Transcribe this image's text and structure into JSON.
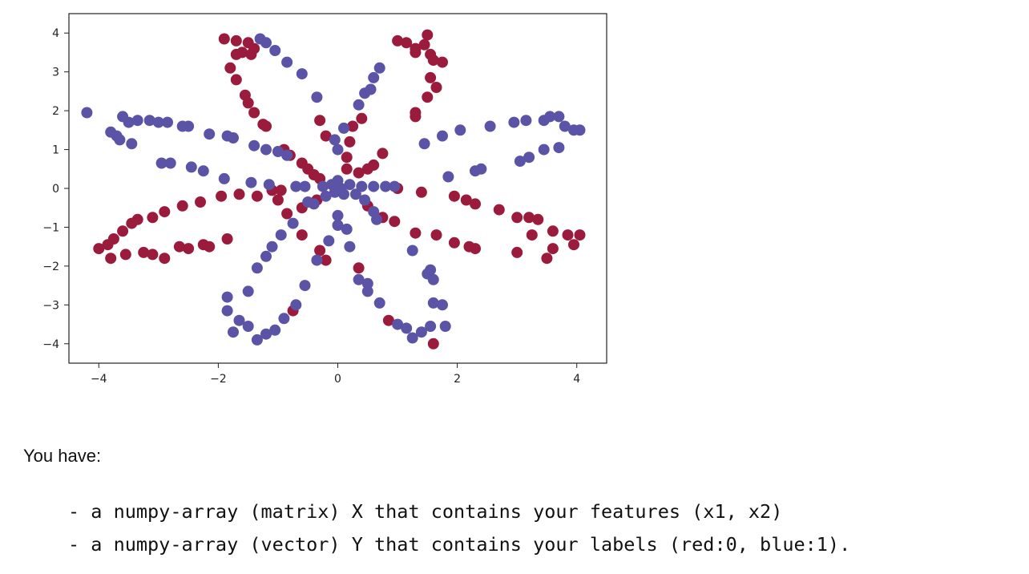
{
  "chart_data": {
    "type": "scatter",
    "title": "",
    "xlabel": "",
    "ylabel": "",
    "xlim": [
      -4.5,
      4.5
    ],
    "ylim": [
      -4.5,
      4.5
    ],
    "xticks": [
      -4,
      -2,
      0,
      2,
      4
    ],
    "yticks": [
      4,
      3,
      2,
      1,
      0,
      -1,
      -2,
      -3,
      -4
    ],
    "xtick_labels": [
      "−4",
      "−2",
      "0",
      "2",
      "4"
    ],
    "ytick_labels": [
      "4",
      "3",
      "2",
      "1",
      "0",
      "−1",
      "−2",
      "−3",
      "−4"
    ],
    "grid": false,
    "series": [
      {
        "label": "0",
        "color": "#9b1b3d",
        "points": [
          [
            -1.9,
            3.85
          ],
          [
            -1.7,
            3.45
          ],
          [
            -1.6,
            3.5
          ],
          [
            -1.45,
            3.45
          ],
          [
            -1.5,
            3.75
          ],
          [
            -1.8,
            3.1
          ],
          [
            -1.7,
            2.8
          ],
          [
            -1.55,
            2.4
          ],
          [
            -1.5,
            2.2
          ],
          [
            -1.4,
            1.95
          ],
          [
            -1.25,
            1.65
          ],
          [
            -1.2,
            1.6
          ],
          [
            -0.9,
            1.0
          ],
          [
            -0.8,
            0.85
          ],
          [
            -0.6,
            0.65
          ],
          [
            -0.5,
            0.5
          ],
          [
            -0.4,
            0.35
          ],
          [
            -0.3,
            0.25
          ],
          [
            -1.7,
            3.8
          ],
          [
            -1.4,
            3.6
          ],
          [
            1.0,
            3.8
          ],
          [
            1.15,
            3.75
          ],
          [
            1.3,
            3.6
          ],
          [
            1.45,
            3.7
          ],
          [
            1.5,
            3.95
          ],
          [
            1.6,
            3.3
          ],
          [
            1.75,
            3.25
          ],
          [
            1.55,
            2.85
          ],
          [
            1.65,
            2.6
          ],
          [
            1.5,
            2.35
          ],
          [
            1.3,
            1.95
          ],
          [
            1.3,
            1.85
          ],
          [
            0.4,
            1.8
          ],
          [
            0.25,
            1.6
          ],
          [
            0.2,
            1.2
          ],
          [
            0.15,
            0.8
          ],
          [
            0.15,
            0.5
          ],
          [
            1.3,
            3.5
          ],
          [
            1.55,
            3.45
          ],
          [
            0.35,
            0.4
          ],
          [
            0.5,
            0.5
          ],
          [
            0.6,
            0.6
          ],
          [
            0.75,
            0.9
          ],
          [
            1.0,
            0.0
          ],
          [
            1.4,
            -0.1
          ],
          [
            1.95,
            -0.2
          ],
          [
            2.15,
            -0.3
          ],
          [
            2.3,
            -0.4
          ],
          [
            2.7,
            -0.55
          ],
          [
            3.0,
            -0.75
          ],
          [
            3.2,
            -0.75
          ],
          [
            3.35,
            -0.8
          ],
          [
            3.0,
            -1.65
          ],
          [
            3.25,
            -1.2
          ],
          [
            3.6,
            -1.1
          ],
          [
            3.85,
            -1.2
          ],
          [
            4.05,
            -1.2
          ],
          [
            3.6,
            -1.55
          ],
          [
            3.5,
            -1.8
          ],
          [
            3.95,
            -1.45
          ],
          [
            0.5,
            -0.45
          ],
          [
            0.75,
            -0.75
          ],
          [
            0.95,
            -0.85
          ],
          [
            1.3,
            -1.15
          ],
          [
            1.65,
            -1.2
          ],
          [
            1.95,
            -1.4
          ],
          [
            2.2,
            -1.5
          ],
          [
            2.3,
            -1.55
          ],
          [
            -0.35,
            -0.3
          ],
          [
            -0.6,
            -0.5
          ],
          [
            -1.0,
            -0.3
          ],
          [
            -1.35,
            -0.2
          ],
          [
            -1.65,
            -0.15
          ],
          [
            -1.95,
            -0.2
          ],
          [
            -2.3,
            -0.35
          ],
          [
            -2.6,
            -0.45
          ],
          [
            -2.9,
            -0.6
          ],
          [
            -3.1,
            -0.75
          ],
          [
            -3.35,
            -0.8
          ],
          [
            -3.45,
            -0.9
          ],
          [
            -3.75,
            -1.3
          ],
          [
            -3.85,
            -1.45
          ],
          [
            -4.0,
            -1.55
          ],
          [
            -3.8,
            -1.8
          ],
          [
            -3.55,
            -1.7
          ],
          [
            -3.25,
            -1.65
          ],
          [
            -3.1,
            -1.7
          ],
          [
            -2.9,
            -1.8
          ],
          [
            -2.65,
            -1.5
          ],
          [
            -2.5,
            -1.55
          ],
          [
            -2.25,
            -1.45
          ],
          [
            -2.15,
            -1.5
          ],
          [
            -1.85,
            -1.3
          ],
          [
            -3.6,
            -1.1
          ],
          [
            -0.85,
            -0.65
          ],
          [
            -0.6,
            -1.2
          ],
          [
            -0.3,
            -1.6
          ],
          [
            -0.2,
            -1.85
          ],
          [
            0.35,
            -2.05
          ],
          [
            0.85,
            -3.4
          ],
          [
            1.6,
            -4.0
          ],
          [
            -0.75,
            -3.15
          ],
          [
            -1.1,
            -0.05
          ],
          [
            -0.95,
            -0.05
          ],
          [
            -0.3,
            1.75
          ],
          [
            -0.2,
            1.35
          ]
        ]
      },
      {
        "label": "1",
        "color": "#5b53a6",
        "points": [
          [
            -4.2,
            1.95
          ],
          [
            -3.8,
            1.45
          ],
          [
            -3.7,
            1.35
          ],
          [
            -3.6,
            1.85
          ],
          [
            -3.5,
            1.7
          ],
          [
            -3.35,
            1.75
          ],
          [
            -3.15,
            1.75
          ],
          [
            -3.0,
            1.7
          ],
          [
            -2.85,
            1.7
          ],
          [
            -2.6,
            1.6
          ],
          [
            -2.5,
            1.6
          ],
          [
            -2.15,
            1.4
          ],
          [
            -1.85,
            1.35
          ],
          [
            -1.75,
            1.3
          ],
          [
            -1.4,
            1.1
          ],
          [
            -1.2,
            1.0
          ],
          [
            -1.0,
            0.95
          ],
          [
            -0.85,
            0.85
          ],
          [
            -3.65,
            1.25
          ],
          [
            -3.45,
            1.15
          ],
          [
            -2.95,
            0.65
          ],
          [
            -2.8,
            0.65
          ],
          [
            -2.45,
            0.55
          ],
          [
            -2.25,
            0.45
          ],
          [
            -1.9,
            0.25
          ],
          [
            -1.45,
            0.15
          ],
          [
            -1.15,
            0.1
          ],
          [
            -0.7,
            0.05
          ],
          [
            -0.55,
            0.05
          ],
          [
            3.55,
            1.85
          ],
          [
            3.7,
            1.85
          ],
          [
            3.8,
            1.6
          ],
          [
            3.95,
            1.5
          ],
          [
            4.05,
            1.5
          ],
          [
            3.45,
            1.75
          ],
          [
            3.15,
            1.75
          ],
          [
            2.95,
            1.7
          ],
          [
            2.55,
            1.6
          ],
          [
            2.05,
            1.5
          ],
          [
            1.75,
            1.35
          ],
          [
            1.45,
            1.15
          ],
          [
            3.05,
            0.7
          ],
          [
            3.2,
            0.8
          ],
          [
            3.45,
            1.0
          ],
          [
            3.7,
            1.05
          ],
          [
            2.3,
            0.45
          ],
          [
            2.4,
            0.5
          ],
          [
            1.85,
            0.3
          ],
          [
            0.95,
            0.05
          ],
          [
            0.8,
            0.05
          ],
          [
            0.6,
            0.05
          ],
          [
            0.4,
            0.05
          ],
          [
            -1.3,
            3.85
          ],
          [
            -1.2,
            3.75
          ],
          [
            -1.05,
            3.55
          ],
          [
            -0.85,
            3.25
          ],
          [
            -0.6,
            2.95
          ],
          [
            -0.35,
            2.35
          ],
          [
            -0.05,
            1.25
          ],
          [
            0.0,
            1.0
          ],
          [
            0.1,
            1.55
          ],
          [
            0.35,
            2.15
          ],
          [
            0.45,
            2.45
          ],
          [
            0.6,
            2.85
          ],
          [
            0.7,
            3.1
          ],
          [
            0.55,
            2.55
          ],
          [
            -1.85,
            -3.15
          ],
          [
            -1.65,
            -3.4
          ],
          [
            -1.5,
            -3.55
          ],
          [
            -1.35,
            -3.9
          ],
          [
            -1.2,
            -3.75
          ],
          [
            -1.05,
            -3.65
          ],
          [
            -0.9,
            -3.35
          ],
          [
            -0.7,
            -3.0
          ],
          [
            -0.55,
            -2.5
          ],
          [
            -0.35,
            -1.85
          ],
          [
            -0.15,
            -1.35
          ],
          [
            0.0,
            -0.95
          ],
          [
            -1.75,
            -3.7
          ],
          [
            -1.5,
            -2.65
          ],
          [
            -1.85,
            -2.8
          ],
          [
            -1.35,
            -2.05
          ],
          [
            -1.2,
            -1.75
          ],
          [
            -1.1,
            -1.5
          ],
          [
            -0.95,
            -1.2
          ],
          [
            -0.75,
            -0.9
          ],
          [
            1.0,
            -3.5
          ],
          [
            1.15,
            -3.6
          ],
          [
            1.25,
            -3.85
          ],
          [
            1.4,
            -3.7
          ],
          [
            1.55,
            -3.55
          ],
          [
            1.6,
            -2.95
          ],
          [
            1.75,
            -3.0
          ],
          [
            1.8,
            -3.55
          ],
          [
            1.5,
            -2.2
          ],
          [
            1.6,
            -2.35
          ],
          [
            1.55,
            -2.1
          ],
          [
            1.25,
            -1.6
          ],
          [
            0.35,
            -2.35
          ],
          [
            0.5,
            -2.45
          ],
          [
            0.7,
            -2.95
          ],
          [
            0.5,
            -2.65
          ],
          [
            0.2,
            -1.5
          ],
          [
            0.15,
            -1.05
          ],
          [
            0.0,
            -0.7
          ],
          [
            -0.1,
            0.1
          ],
          [
            0.0,
            0.2
          ],
          [
            0.05,
            0.0
          ],
          [
            -0.05,
            -0.1
          ],
          [
            -0.2,
            -0.2
          ],
          [
            0.1,
            -0.15
          ],
          [
            0.2,
            0.1
          ],
          [
            -0.25,
            0.05
          ],
          [
            0.3,
            -0.15
          ],
          [
            0.45,
            -0.3
          ],
          [
            0.6,
            -0.6
          ],
          [
            0.65,
            -0.8
          ],
          [
            -0.4,
            -0.4
          ],
          [
            -0.5,
            -0.35
          ]
        ]
      }
    ]
  },
  "intro_text": "You have:",
  "code_lines": [
    "- a numpy-array (matrix) X that contains your features (x1, x2)",
    "- a numpy-array (vector) Y that contains your labels (red:0, blue:1)."
  ]
}
